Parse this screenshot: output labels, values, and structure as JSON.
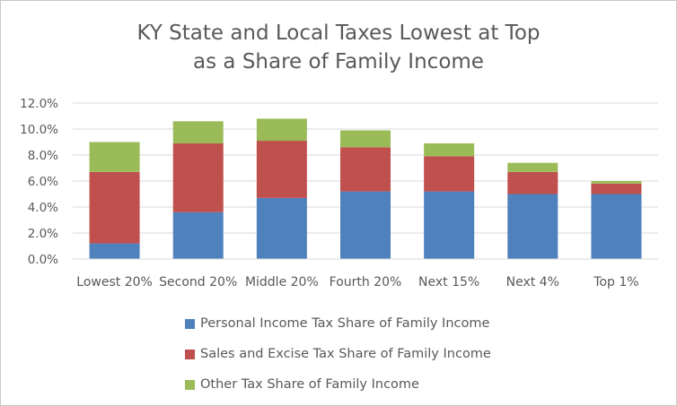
{
  "chart_data": {
    "type": "bar",
    "stacked": true,
    "title": [
      "KY State and Local Taxes Lowest at Top",
      "as a Share of Family Income"
    ],
    "xlabel": "",
    "ylabel": "",
    "categories": [
      "Lowest 20%",
      "Second 20%",
      "Middle 20%",
      "Fourth 20%",
      "Next 15%",
      "Next 4%",
      "Top 1%"
    ],
    "series": [
      {
        "name": "Personal Income Tax Share of Family Income",
        "color": "#4f81bd",
        "values": [
          1.2,
          3.6,
          4.7,
          5.2,
          5.2,
          5.0,
          5.0
        ]
      },
      {
        "name": "Sales and Excise Tax Share of Family Income",
        "color": "#c0504d",
        "values": [
          5.5,
          5.3,
          4.4,
          3.4,
          2.7,
          1.7,
          0.8
        ]
      },
      {
        "name": "Other Tax Share of Family Income",
        "color": "#9bbb59",
        "values": [
          2.3,
          1.7,
          1.7,
          1.3,
          1.0,
          0.7,
          0.2
        ]
      }
    ],
    "ylim": [
      0,
      12
    ],
    "yticks": [
      "0.0%",
      "2.0%",
      "4.0%",
      "6.0%",
      "8.0%",
      "10.0%",
      "12.0%"
    ],
    "grid": true,
    "legend_position": "bottom"
  }
}
